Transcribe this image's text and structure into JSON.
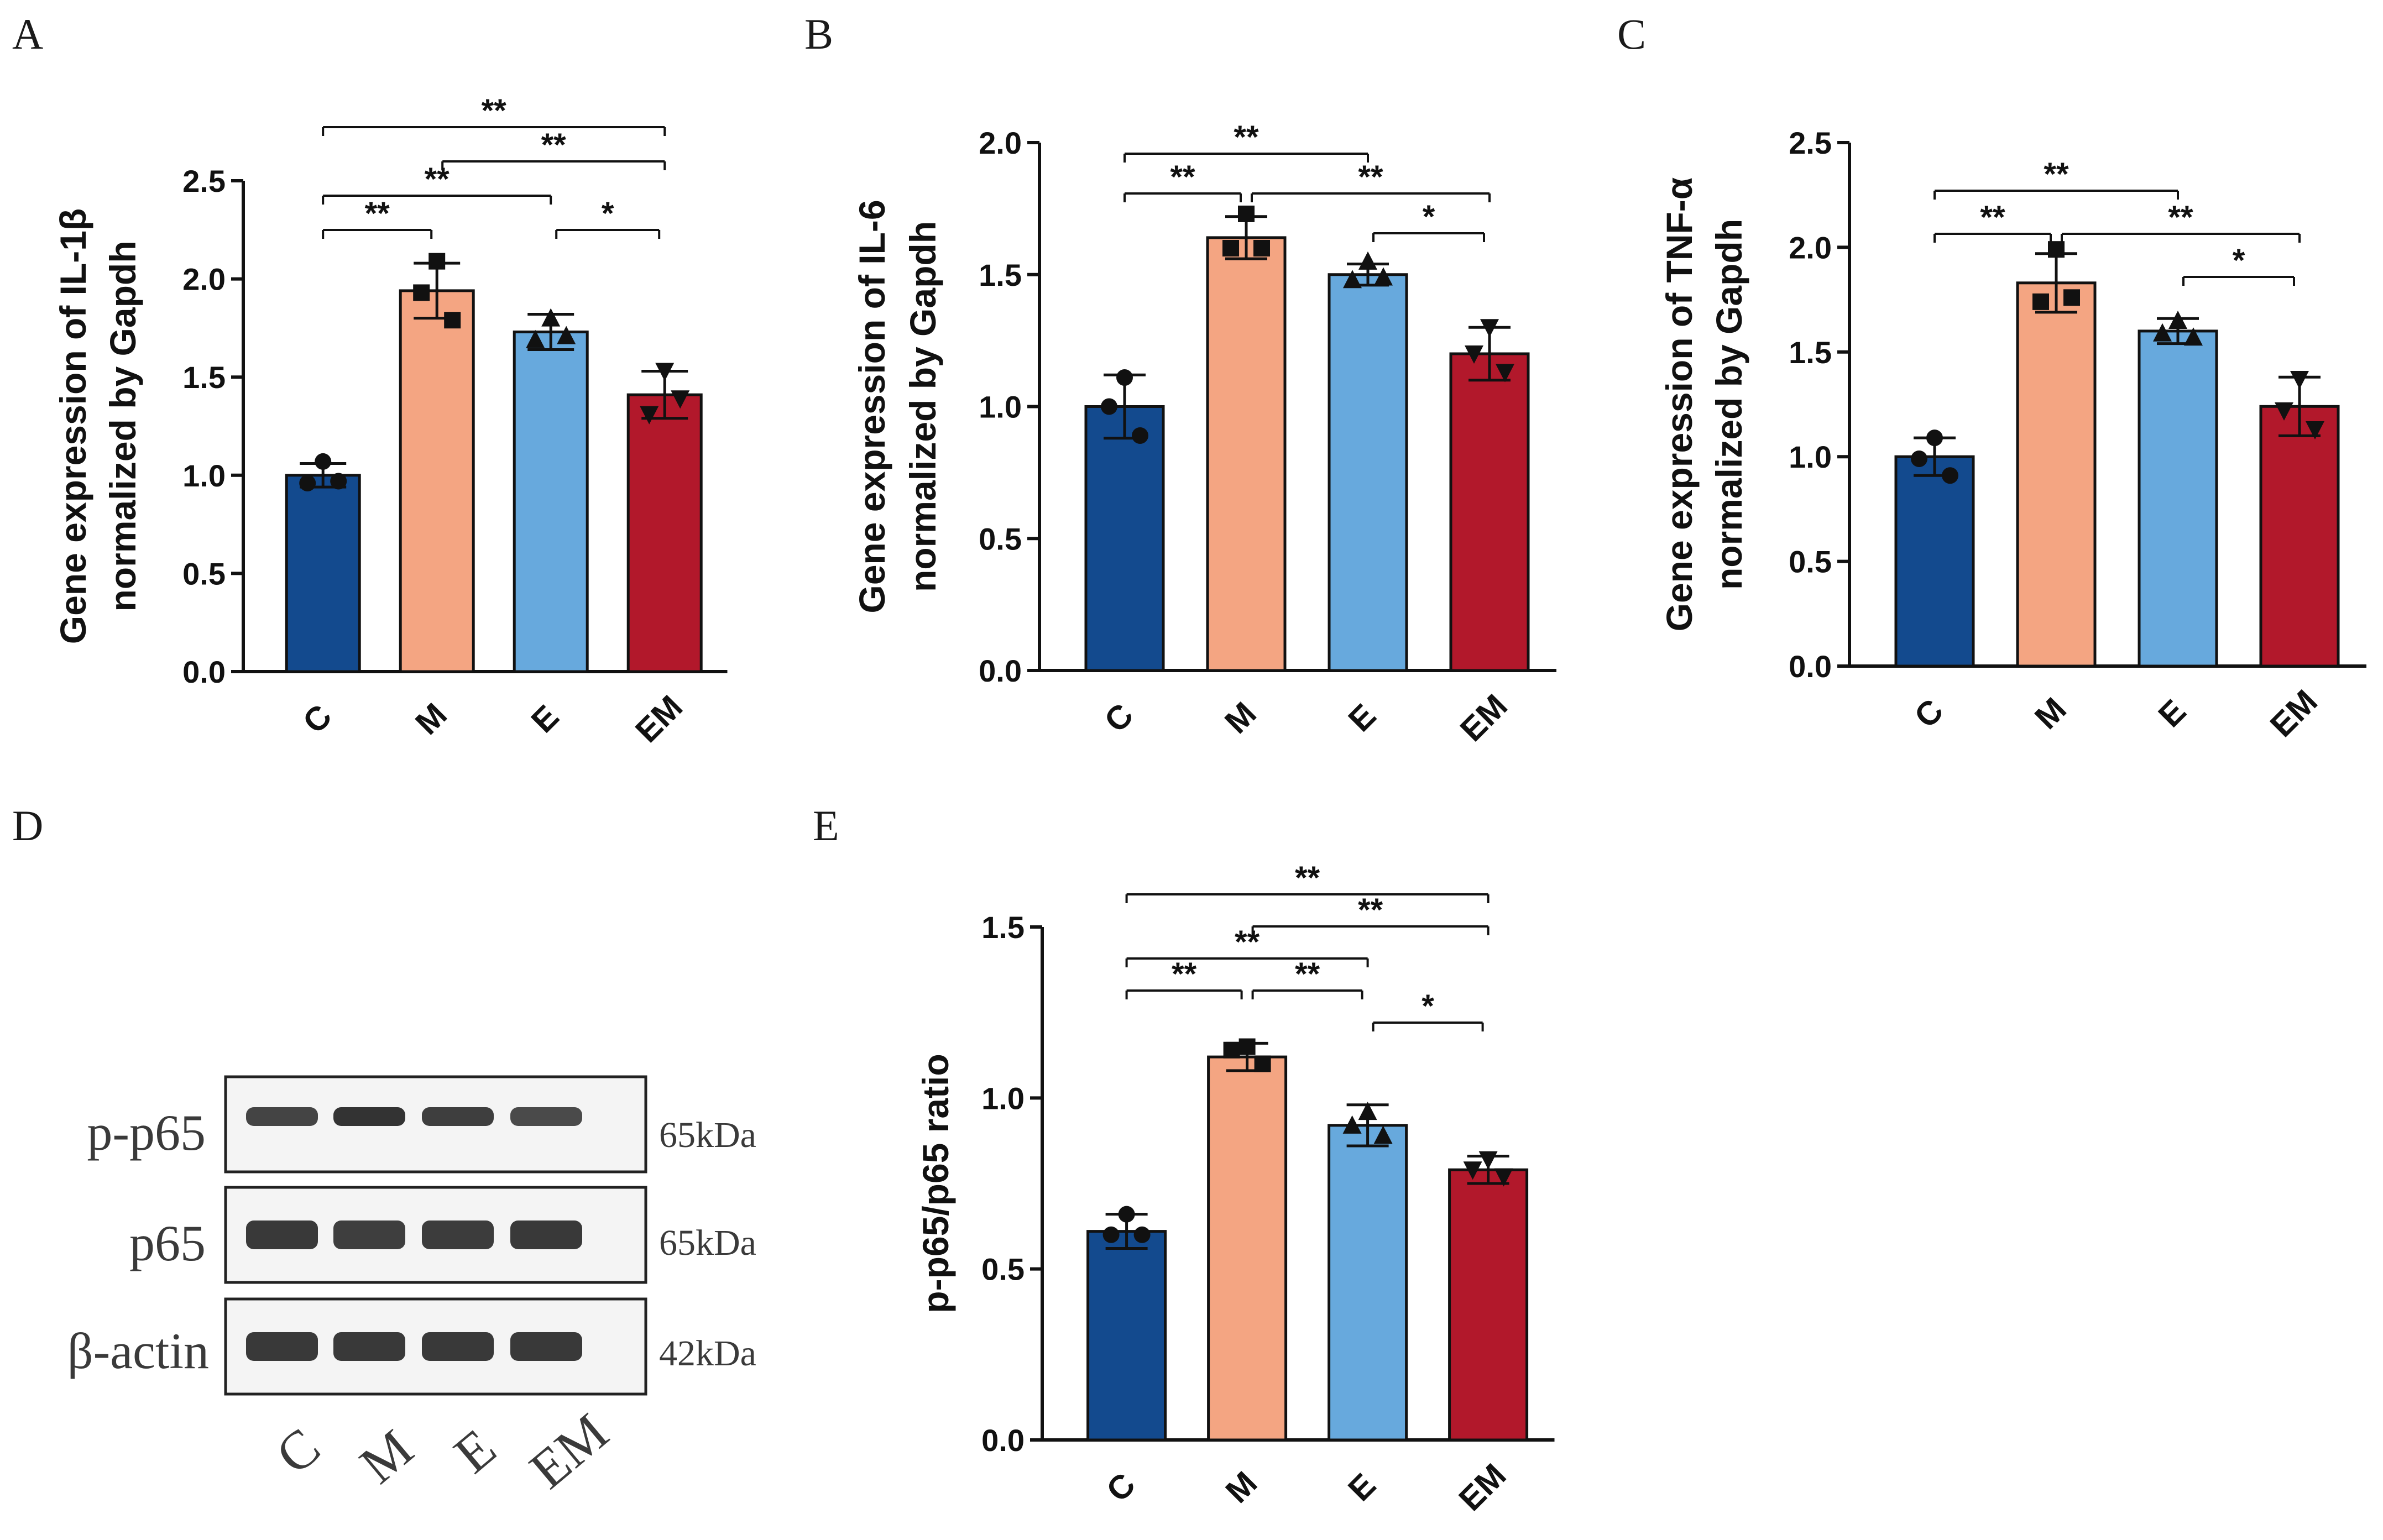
{
  "figure": {
    "panels": [
      "A",
      "B",
      "C",
      "D",
      "E"
    ]
  },
  "colors": {
    "C": "#134a8e",
    "M": "#f4a582",
    "E": "#67a9dd",
    "EM": "#b2182b"
  },
  "chart_data": [
    {
      "panel": "A",
      "type": "bar",
      "title": "",
      "xlabel": "",
      "ylabel_lines": [
        "Gene expression of IL-1β",
        "normalized by Gapdh"
      ],
      "categories": [
        "C",
        "M",
        "E",
        "EM"
      ],
      "values": [
        1.0,
        1.94,
        1.73,
        1.41
      ],
      "errors": [
        0.06,
        0.14,
        0.09,
        0.12
      ],
      "points": [
        [
          1.07,
          0.96,
          0.97
        ],
        [
          2.09,
          1.93,
          1.79
        ],
        [
          1.8,
          1.69,
          1.71
        ],
        [
          1.53,
          1.31,
          1.39
        ]
      ],
      "markers": [
        "circle",
        "square",
        "triangle-up",
        "triangle-down"
      ],
      "ylim": [
        0,
        2.5
      ],
      "yticks": [
        "0.0",
        "0.5",
        "1.0",
        "1.5",
        "2.0",
        "2.5"
      ],
      "significance": [
        {
          "from": 0,
          "to": 3,
          "label": "**",
          "level": 0
        },
        {
          "from": 1,
          "to": 3,
          "label": "**",
          "level": 1
        },
        {
          "from": 0,
          "to": 2,
          "label": "**",
          "level": 2
        },
        {
          "from": 0,
          "to": 1,
          "label": "**",
          "level": 3
        },
        {
          "from": 2,
          "to": 3,
          "label": "*",
          "level": 3
        }
      ]
    },
    {
      "panel": "B",
      "type": "bar",
      "title": "",
      "xlabel": "",
      "ylabel_lines": [
        "Gene expression of IL-6",
        "normalized by Gapdh"
      ],
      "categories": [
        "C",
        "M",
        "E",
        "EM"
      ],
      "values": [
        1.0,
        1.64,
        1.5,
        1.2
      ],
      "errors": [
        0.12,
        0.08,
        0.04,
        0.1
      ],
      "points": [
        [
          1.11,
          1.0,
          0.89
        ],
        [
          1.73,
          1.6,
          1.6
        ],
        [
          1.55,
          1.48,
          1.49
        ],
        [
          1.3,
          1.2,
          1.13
        ]
      ],
      "markers": [
        "circle",
        "square",
        "triangle-up",
        "triangle-down"
      ],
      "ylim": [
        0,
        2.0
      ],
      "yticks": [
        "0.0",
        "0.5",
        "1.0",
        "1.5",
        "2.0"
      ],
      "significance": [
        {
          "from": 0,
          "to": 2,
          "label": "**",
          "level": 0
        },
        {
          "from": 0,
          "to": 1,
          "label": "**",
          "level": 1
        },
        {
          "from": 1,
          "to": 3,
          "label": "**",
          "level": 1
        },
        {
          "from": 2,
          "to": 3,
          "label": "*",
          "level": 2
        }
      ]
    },
    {
      "panel": "C",
      "type": "bar",
      "title": "",
      "xlabel": "",
      "ylabel_lines": [
        "Gene expression of TNF-α",
        "normalized by Gapdh"
      ],
      "categories": [
        "C",
        "M",
        "E",
        "EM"
      ],
      "values": [
        1.0,
        1.83,
        1.6,
        1.24
      ],
      "errors": [
        0.09,
        0.14,
        0.06,
        0.14
      ],
      "points": [
        [
          1.09,
          0.99,
          0.91
        ],
        [
          1.99,
          1.74,
          1.76
        ],
        [
          1.65,
          1.59,
          1.57
        ],
        [
          1.37,
          1.22,
          1.13
        ]
      ],
      "markers": [
        "circle",
        "square",
        "triangle-up",
        "triangle-down"
      ],
      "ylim": [
        0,
        2.5
      ],
      "yticks": [
        "0.0",
        "0.5",
        "1.0",
        "1.5",
        "2.0",
        "2.5"
      ],
      "significance": [
        {
          "from": 0,
          "to": 2,
          "label": "**",
          "level": 0
        },
        {
          "from": 0,
          "to": 1,
          "label": "**",
          "level": 1
        },
        {
          "from": 1,
          "to": 3,
          "label": "**",
          "level": 1
        },
        {
          "from": 2,
          "to": 3,
          "label": "*",
          "level": 2
        }
      ]
    },
    {
      "panel": "E",
      "type": "bar",
      "title": "",
      "xlabel": "",
      "ylabel_lines": [
        "p-p65/p65 ratio"
      ],
      "categories": [
        "C",
        "M",
        "E",
        "EM"
      ],
      "values": [
        0.61,
        1.12,
        0.92,
        0.79
      ],
      "errors": [
        0.05,
        0.04,
        0.06,
        0.04
      ],
      "points": [
        [
          0.66,
          0.6,
          0.6
        ],
        [
          1.15,
          1.14,
          1.1
        ],
        [
          0.96,
          0.92,
          0.89
        ],
        [
          0.82,
          0.79,
          0.77
        ]
      ],
      "markers": [
        "circle",
        "square",
        "triangle-up",
        "triangle-down"
      ],
      "ylim": [
        0,
        1.5
      ],
      "yticks": [
        "0.0",
        "0.5",
        "1.0",
        "1.5"
      ],
      "significance": [
        {
          "from": 0,
          "to": 3,
          "label": "**",
          "level": 0
        },
        {
          "from": 1,
          "to": 3,
          "label": "**",
          "level": 1
        },
        {
          "from": 0,
          "to": 2,
          "label": "**",
          "level": 2
        },
        {
          "from": 0,
          "to": 1,
          "label": "**",
          "level": 3
        },
        {
          "from": 1,
          "to": 2,
          "label": "**",
          "level": 3
        },
        {
          "from": 2,
          "to": 3,
          "label": "*",
          "level": 4
        }
      ]
    }
  ],
  "blot": {
    "panel": "D",
    "rows": [
      {
        "label": "p-p65",
        "size": "65kDa",
        "intensity": [
          0.85,
          1.0,
          0.9,
          0.8
        ]
      },
      {
        "label": "p65",
        "size": "65kDa",
        "intensity": [
          0.95,
          0.9,
          0.92,
          0.95
        ]
      },
      {
        "label": "β-actin",
        "size": "42kDa",
        "intensity": [
          0.95,
          0.95,
          0.95,
          0.95
        ]
      }
    ],
    "lanes": [
      "C",
      "M",
      "E",
      "EM"
    ]
  }
}
